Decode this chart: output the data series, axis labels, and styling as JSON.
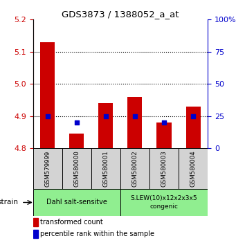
{
  "title": "GDS3873 / 1388052_a_at",
  "samples": [
    "GSM579999",
    "GSM580000",
    "GSM580001",
    "GSM580002",
    "GSM580003",
    "GSM580004"
  ],
  "red_values": [
    5.13,
    4.845,
    4.94,
    4.96,
    4.88,
    4.93
  ],
  "blue_values": [
    25,
    20,
    25,
    25,
    20,
    25
  ],
  "ylim_left": [
    4.8,
    5.2
  ],
  "ylim_right": [
    0,
    100
  ],
  "yticks_left": [
    4.8,
    4.9,
    5.0,
    5.1,
    5.2
  ],
  "yticks_right": [
    0,
    25,
    50,
    75,
    100
  ],
  "bar_bottom": 4.8,
  "group1_label": "Dahl salt-sensitve",
  "group2_label": "S.LEW(10)x12x2x3x5\ncongenic",
  "group_color": "#90EE90",
  "sample_bg": "#D3D3D3",
  "legend_red": "transformed count",
  "legend_blue": "percentile rank within the sample",
  "strain_label": "strain",
  "left_color": "#CC0000",
  "right_color": "#0000CC",
  "bar_color": "#CC0000",
  "dot_color": "#0000CC",
  "bar_width": 0.5
}
